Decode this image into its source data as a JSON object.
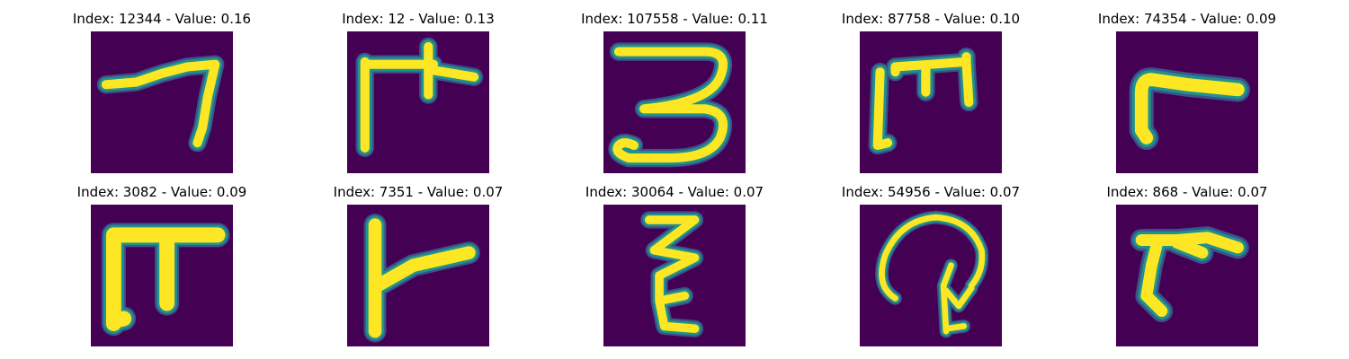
{
  "colors": {
    "background": "#440154",
    "stroke_core": "#fde725",
    "stroke_mid": "#8fd744",
    "stroke_edge": "#21918c",
    "stroke_outer": "#3b528b"
  },
  "panels": [
    {
      "title": "Index: 12344 - Value: 0.16",
      "glyph": "seven-like-hook"
    },
    {
      "title": "Index: 12 - Value: 0.13",
      "glyph": "pi-with-crossbar"
    },
    {
      "title": "Index: 107558 - Value: 0.11",
      "glyph": "three-like-curl"
    },
    {
      "title": "Index: 87758 - Value: 0.10",
      "glyph": "m-like-arch"
    },
    {
      "title": "Index: 74354 - Value: 0.09",
      "glyph": "gamma-like-corner"
    },
    {
      "title": "Index: 3082 - Value: 0.09",
      "glyph": "thick-pi"
    },
    {
      "title": "Index: 7351 - Value: 0.07",
      "glyph": "l-with-bar"
    },
    {
      "title": "Index: 30064 - Value: 0.07",
      "glyph": "epsilon-like-zigzag"
    },
    {
      "title": "Index: 54956 - Value: 0.07",
      "glyph": "loop-with-hook"
    },
    {
      "title": "Index: 868 - Value: 0.07",
      "glyph": "short-gamma"
    }
  ]
}
